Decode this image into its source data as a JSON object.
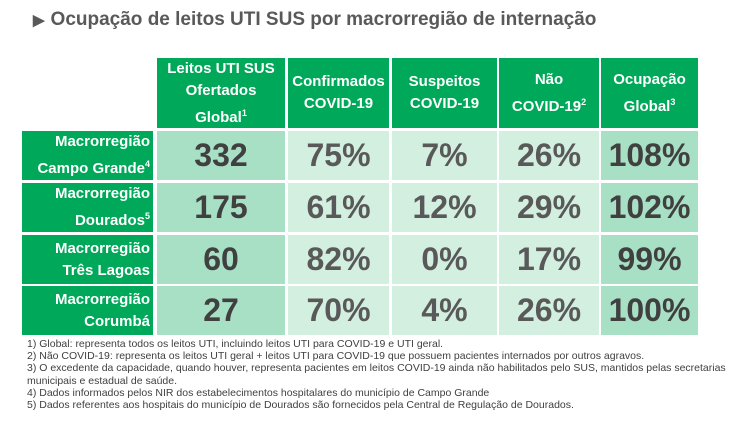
{
  "title": "Ocupação de leitos UTI SUS por macrorregião de internação",
  "title_icon": "triangle-right-icon",
  "colors": {
    "header_green": "#00a859",
    "dark_cell": "#a8e0c6",
    "light_cell": "#d2efe0"
  },
  "columns": [
    {
      "lines": [
        "Leitos UTI SUS",
        "Ofertados",
        "Global"
      ],
      "sup": "1"
    },
    {
      "lines": [
        "Confirmados",
        "COVID-19"
      ],
      "sup": ""
    },
    {
      "lines": [
        "Suspeitos",
        "COVID-19"
      ],
      "sup": ""
    },
    {
      "lines": [
        "Não",
        "COVID-19"
      ],
      "sup": "2"
    },
    {
      "lines": [
        "Ocupação",
        "Global"
      ],
      "sup": "3"
    }
  ],
  "rows": [
    {
      "l1": "Macrorregião",
      "l2": "Campo Grande",
      "sup": "4",
      "values": [
        "332",
        "75%",
        "7%",
        "26%",
        "108%"
      ]
    },
    {
      "l1": "Macrorregião",
      "l2": "Dourados",
      "sup": "5",
      "values": [
        "175",
        "61%",
        "12%",
        "29%",
        "102%"
      ]
    },
    {
      "l1": "Macrorregião",
      "l2": "Três Lagoas",
      "sup": "",
      "values": [
        "60",
        "82%",
        "0%",
        "17%",
        "99%"
      ]
    },
    {
      "l1": "Macrorregião",
      "l2": "Corumbá",
      "sup": "",
      "values": [
        "27",
        "70%",
        "4%",
        "26%",
        "100%"
      ]
    }
  ],
  "notes": [
    "1) Global: representa todos os leitos UTI, incluindo leitos UTI para COVID-19 e UTI geral.",
    "2) Não COVID-19: representa os leitos UTI geral + leitos UTI para COVID-19 que possuem pacientes internados por outros agravos.",
    "3) O excedente da capacidade, quando houver, representa pacientes em leitos COVID-19 ainda não habilitados pelo SUS, mantidos pelas secretarias municipais e estadual de saúde.",
    "4) Dados informados pelos NIR dos estabelecimentos hospitalares do município de Campo Grande",
    "5) Dados referentes aos hospitais do município de Dourados são fornecidos pela Central de Regulação de Dourados."
  ]
}
